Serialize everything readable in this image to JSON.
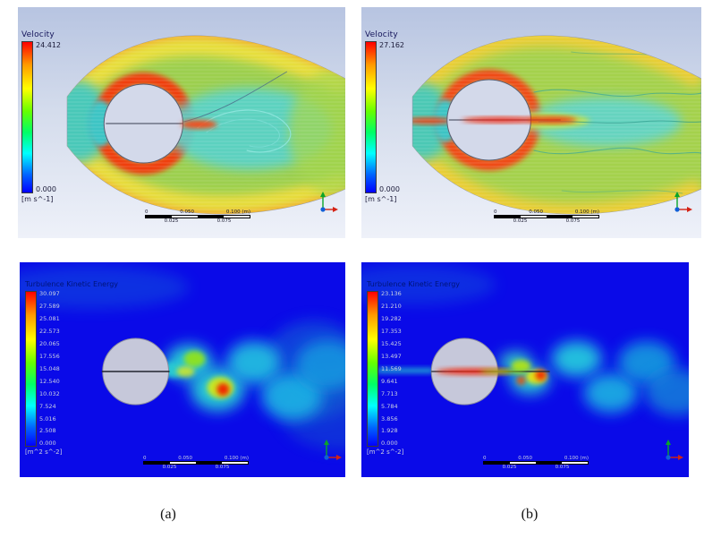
{
  "panels": {
    "top_a": {
      "legend": {
        "title": "Velocity",
        "max": "24.412",
        "min": "0.000",
        "units": "[m s^-1]"
      }
    },
    "top_b": {
      "legend": {
        "title": "Velocity",
        "max": "27.162",
        "min": "0.000",
        "units": "[m s^-1]"
      }
    },
    "bottom_a": {
      "legend": {
        "title": "Turbulence Kinetic Energy",
        "ticks": [
          "30.097",
          "27.589",
          "25.081",
          "22.573",
          "20.065",
          "17.556",
          "15.048",
          "12.540",
          "10.032",
          "7.524",
          "5.016",
          "2.508",
          "0.000"
        ],
        "units": "[m^2 s^-2]"
      }
    },
    "bottom_b": {
      "legend": {
        "title": "Turbulence Kinetic Energy",
        "ticks": [
          "23.136",
          "21.210",
          "19.282",
          "17.353",
          "15.425",
          "13.497",
          "11.569",
          "9.641",
          "7.713",
          "5.784",
          "3.856",
          "1.928",
          "0.000"
        ],
        "units": "[m^2 s^-2]"
      }
    }
  },
  "scalebar": {
    "t0": "0",
    "t1": "0.050",
    "t2": "0.100 (m)",
    "b0": "0.025",
    "b1": "0.075"
  },
  "captions": {
    "a": "(a)",
    "b": "(b)"
  },
  "colors": {
    "top_panel_background": "#b7c4e1",
    "bottom_panel_background": "#0a0ae8",
    "colorbar_max": "#ff0000",
    "colorbar_min": "#0000ff"
  }
}
